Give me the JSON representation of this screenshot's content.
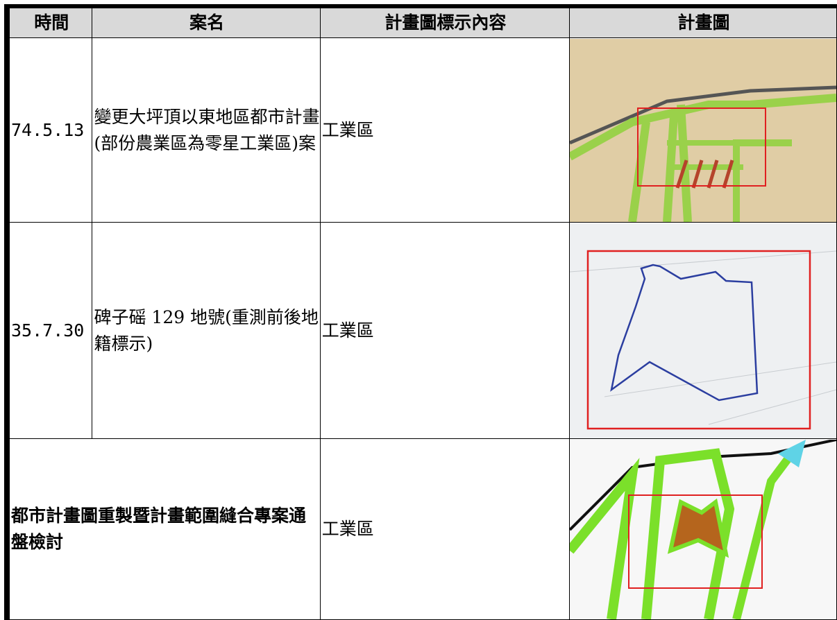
{
  "table": {
    "header": [
      "時間",
      "案名",
      "計畫圖標示內容",
      "計畫圖"
    ],
    "rows": [
      [
        "74.5.13",
        "變更大坪頂以東地區都市計畫(部份農業區為零星工業區)案",
        "工業區"
      ],
      [
        "35.7.30",
        "碑子磘 129 地號(重測前後地籍標示)",
        "工業區"
      ],
      [
        "都市計畫圖重製暨計畫範圍縫合專案通盤檢討",
        "工業區"
      ]
    ]
  }
}
